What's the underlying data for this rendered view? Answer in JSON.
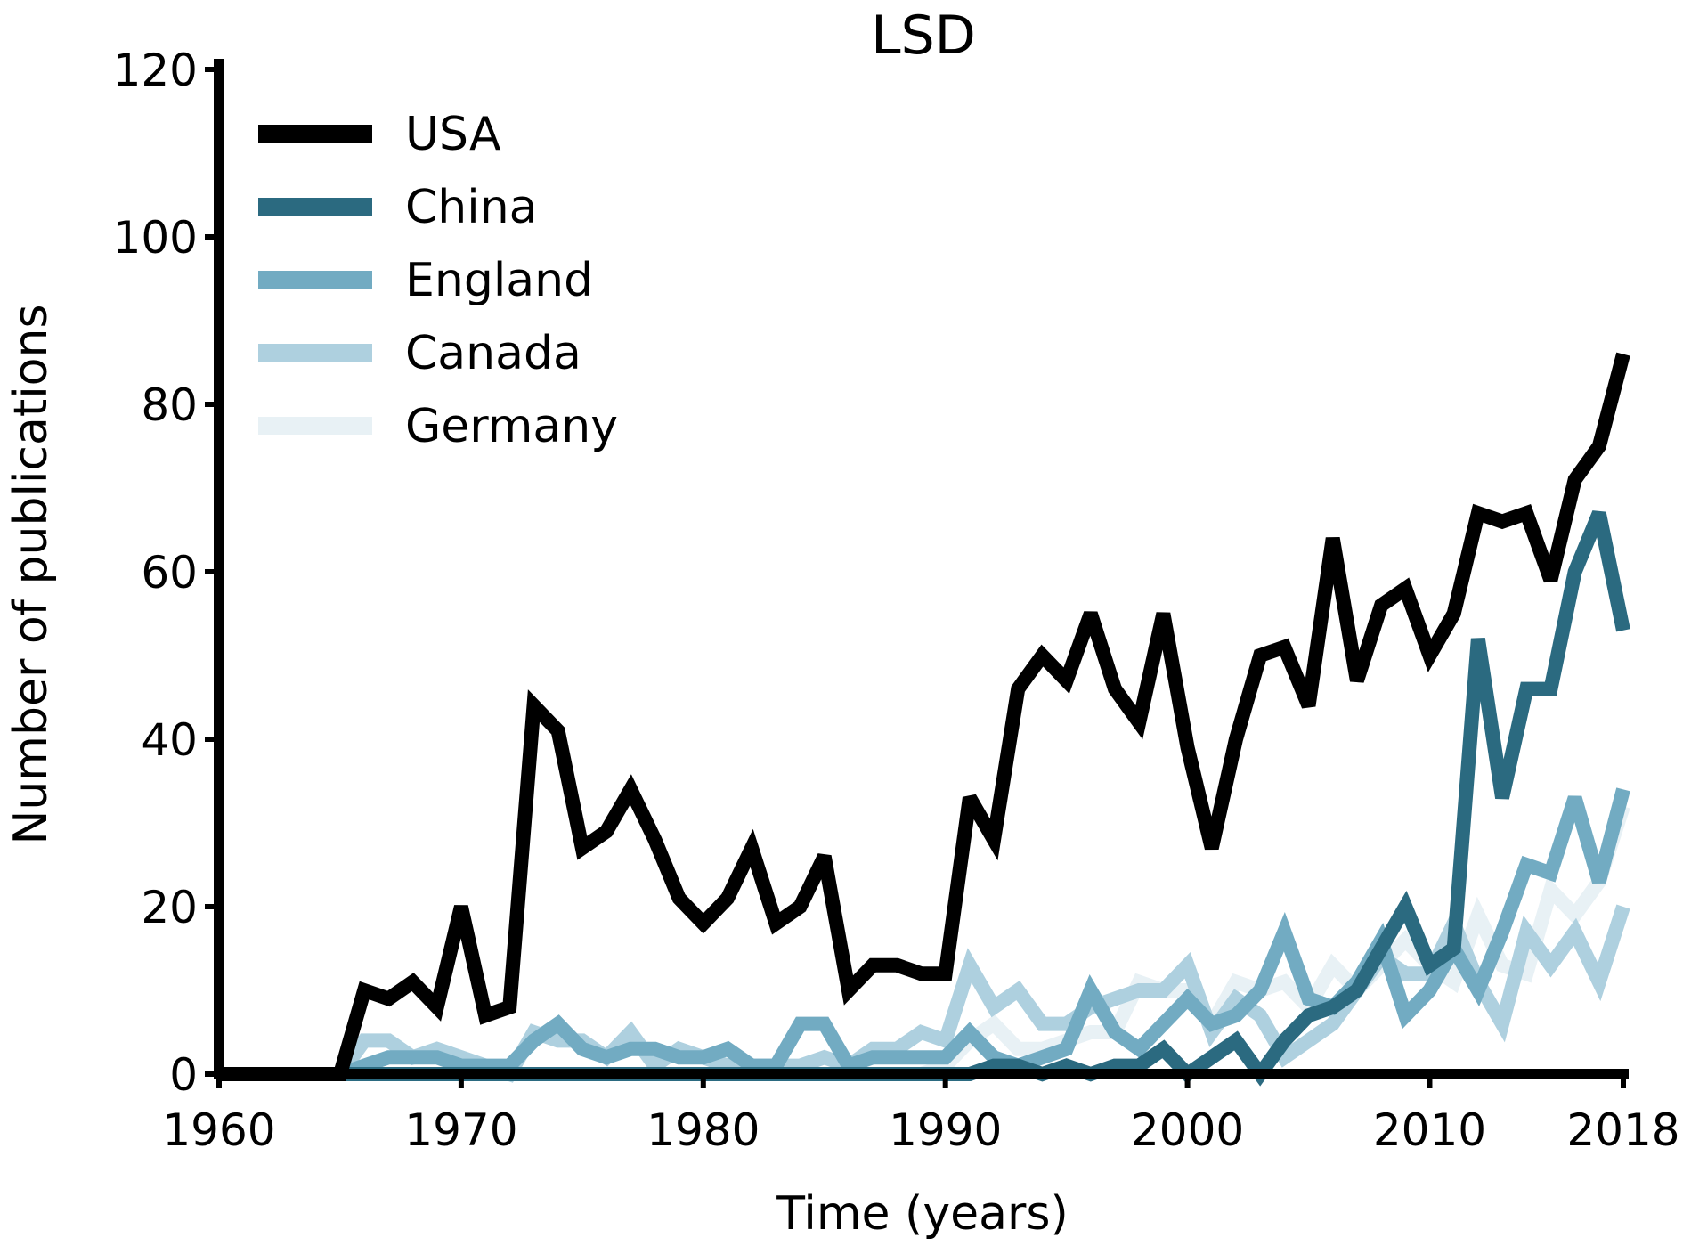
{
  "chart_data": {
    "type": "line",
    "title": "LSD",
    "xlabel": "Time (years)",
    "ylabel": "Number of publications",
    "xlim": [
      1960,
      2018
    ],
    "ylim": [
      0,
      120
    ],
    "xticks": [
      1960,
      1970,
      1980,
      1990,
      2000,
      2010,
      2018
    ],
    "yticks": [
      0,
      20,
      40,
      60,
      80,
      100,
      120
    ],
    "grid": false,
    "legend_position": "top-left",
    "x": [
      1960,
      1961,
      1962,
      1963,
      1964,
      1965,
      1966,
      1967,
      1968,
      1969,
      1970,
      1971,
      1972,
      1973,
      1974,
      1975,
      1976,
      1977,
      1978,
      1979,
      1980,
      1981,
      1982,
      1983,
      1984,
      1985,
      1986,
      1987,
      1988,
      1989,
      1990,
      1991,
      1992,
      1993,
      1994,
      1995,
      1996,
      1997,
      1998,
      1999,
      2000,
      2001,
      2002,
      2003,
      2004,
      2005,
      2006,
      2007,
      2008,
      2009,
      2010,
      2011,
      2012,
      2013,
      2014,
      2015,
      2016,
      2017,
      2018
    ],
    "series": [
      {
        "name": "USA",
        "color": "#000000",
        "values": [
          0,
          0,
          0,
          0,
          0,
          0,
          10,
          9,
          11,
          8,
          20,
          7,
          8,
          44,
          41,
          27,
          29,
          34,
          28,
          21,
          18,
          21,
          27,
          18,
          20,
          26,
          10,
          13,
          13,
          12,
          12,
          33,
          28,
          46,
          50,
          47,
          55,
          46,
          42,
          55,
          39,
          27,
          40,
          50,
          51,
          44,
          64,
          47,
          56,
          58,
          50,
          55,
          67,
          66,
          67,
          59,
          71,
          75,
          86
        ]
      },
      {
        "name": "China",
        "color": "#2b6a80",
        "values": [
          0,
          0,
          0,
          0,
          0,
          0,
          0,
          0,
          0,
          0,
          0,
          0,
          0,
          0,
          0,
          0,
          0,
          0,
          0,
          0,
          0,
          0,
          0,
          0,
          0,
          0,
          0,
          0,
          0,
          0,
          0,
          0,
          1,
          1,
          0,
          1,
          0,
          1,
          1,
          3,
          0,
          2,
          4,
          0,
          4,
          7,
          8,
          10,
          15,
          20,
          13,
          15,
          52,
          33,
          46,
          46,
          60,
          67,
          53
        ]
      },
      {
        "name": "England",
        "color": "#72abc2",
        "values": [
          0,
          0,
          0,
          0,
          0,
          0,
          1,
          2,
          2,
          2,
          1,
          1,
          1,
          4,
          6,
          3,
          2,
          3,
          3,
          2,
          2,
          3,
          1,
          1,
          6,
          6,
          1,
          2,
          2,
          2,
          2,
          5,
          2,
          1,
          2,
          3,
          10,
          5,
          3,
          6,
          9,
          6,
          7,
          10,
          17,
          9,
          8,
          11,
          16,
          7,
          10,
          15,
          10,
          17,
          25,
          24,
          33,
          23,
          34
        ]
      },
      {
        "name": "Canada",
        "color": "#aed0df",
        "values": [
          0,
          0,
          0,
          0,
          0,
          0,
          4,
          4,
          2,
          3,
          2,
          1,
          0,
          5,
          4,
          4,
          2,
          5,
          1,
          3,
          2,
          1,
          1,
          1,
          1,
          2,
          1,
          3,
          3,
          5,
          4,
          13,
          8,
          10,
          6,
          6,
          8,
          9,
          10,
          10,
          13,
          5,
          9,
          7,
          2,
          4,
          6,
          10,
          14,
          12,
          12,
          18,
          11,
          6,
          17,
          13,
          17,
          11,
          20
        ]
      },
      {
        "name": "Germany",
        "color": "#e8f1f5",
        "values": [
          0,
          0,
          0,
          0,
          0,
          0,
          0,
          0,
          0,
          0,
          0,
          0,
          0,
          0,
          0,
          0,
          0,
          0,
          0,
          0,
          0,
          0,
          0,
          0,
          0,
          0,
          0,
          0,
          0,
          0,
          1,
          4,
          6,
          3,
          3,
          4,
          5,
          5,
          11,
          10,
          10,
          6,
          11,
          10,
          11,
          8,
          13,
          10,
          13,
          16,
          13,
          11,
          19,
          13,
          12,
          22,
          19,
          23,
          32
        ]
      }
    ]
  }
}
